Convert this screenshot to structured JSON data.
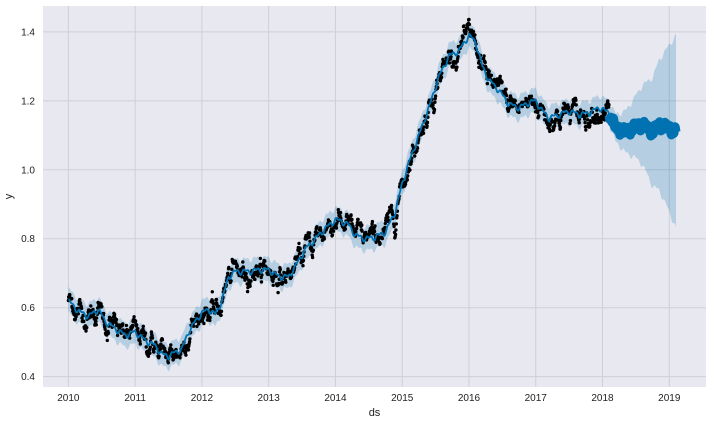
{
  "chart_data": {
    "type": "scatter",
    "title": "",
    "xlabel": "ds",
    "ylabel": "y",
    "xlim": [
      2009.62,
      2019.55
    ],
    "ylim": [
      0.37,
      1.475
    ],
    "x_ticks": [
      2010,
      2011,
      2012,
      2013,
      2014,
      2015,
      2016,
      2017,
      2018,
      2019
    ],
    "x_tick_labels": [
      "2010",
      "2011",
      "2012",
      "2013",
      "2014",
      "2015",
      "2016",
      "2017",
      "2018",
      "2019"
    ],
    "y_ticks": [
      0.4,
      0.6,
      0.8,
      1.0,
      1.2,
      1.4
    ],
    "y_tick_labels": [
      "0.4",
      "0.6",
      "0.8",
      "1.0",
      "1.2",
      "1.4"
    ],
    "grid": true,
    "history_end": 2018.1,
    "forecast_end": 2019.1,
    "trend_knots": [
      [
        2010.0,
        0.62
      ],
      [
        2010.05,
        0.61
      ],
      [
        2010.15,
        0.59
      ],
      [
        2010.3,
        0.575
      ],
      [
        2010.45,
        0.595
      ],
      [
        2010.55,
        0.56
      ],
      [
        2010.7,
        0.54
      ],
      [
        2010.85,
        0.52
      ],
      [
        2011.0,
        0.53
      ],
      [
        2011.15,
        0.505
      ],
      [
        2011.3,
        0.49
      ],
      [
        2011.4,
        0.465
      ],
      [
        2011.5,
        0.46
      ],
      [
        2011.6,
        0.47
      ],
      [
        2011.7,
        0.48
      ],
      [
        2011.8,
        0.53
      ],
      [
        2011.9,
        0.56
      ],
      [
        2012.0,
        0.585
      ],
      [
        2012.1,
        0.595
      ],
      [
        2012.2,
        0.58
      ],
      [
        2012.3,
        0.62
      ],
      [
        2012.4,
        0.69
      ],
      [
        2012.5,
        0.705
      ],
      [
        2012.7,
        0.705
      ],
      [
        2012.85,
        0.71
      ],
      [
        2013.0,
        0.71
      ],
      [
        2013.15,
        0.69
      ],
      [
        2013.3,
        0.69
      ],
      [
        2013.4,
        0.72
      ],
      [
        2013.55,
        0.77
      ],
      [
        2013.7,
        0.8
      ],
      [
        2013.85,
        0.83
      ],
      [
        2014.0,
        0.855
      ],
      [
        2014.1,
        0.85
      ],
      [
        2014.2,
        0.84
      ],
      [
        2014.3,
        0.81
      ],
      [
        2014.45,
        0.8
      ],
      [
        2014.6,
        0.805
      ],
      [
        2014.75,
        0.82
      ],
      [
        2014.9,
        0.88
      ],
      [
        2015.0,
        0.96
      ],
      [
        2015.1,
        1.02
      ],
      [
        2015.25,
        1.1
      ],
      [
        2015.4,
        1.18
      ],
      [
        2015.55,
        1.27
      ],
      [
        2015.7,
        1.33
      ],
      [
        2015.85,
        1.345
      ],
      [
        2016.0,
        1.39
      ],
      [
        2016.1,
        1.37
      ],
      [
        2016.2,
        1.3
      ],
      [
        2016.3,
        1.26
      ],
      [
        2016.45,
        1.23
      ],
      [
        2016.6,
        1.19
      ],
      [
        2016.75,
        1.18
      ],
      [
        2016.9,
        1.195
      ],
      [
        2017.0,
        1.2
      ],
      [
        2017.1,
        1.17
      ],
      [
        2017.2,
        1.15
      ],
      [
        2017.35,
        1.16
      ],
      [
        2017.5,
        1.17
      ],
      [
        2017.65,
        1.16
      ],
      [
        2017.8,
        1.165
      ],
      [
        2017.95,
        1.18
      ],
      [
        2018.1,
        1.165
      ],
      [
        2018.2,
        1.12
      ],
      [
        2018.35,
        1.11
      ],
      [
        2018.5,
        1.125
      ],
      [
        2018.6,
        1.13
      ],
      [
        2018.75,
        1.11
      ],
      [
        2018.85,
        1.13
      ],
      [
        2019.0,
        1.12
      ],
      [
        2019.1,
        1.11
      ]
    ],
    "interval_halfwidth_history": 0.035,
    "interval_halfwidth_final": 0.28,
    "scatter_noise_sd": 0.018,
    "observation_step_years": 0.0055,
    "colors": {
      "plot_background": "#e8e8f0",
      "grid": "#cfcfd6",
      "forecast_line": "#0072b2",
      "uncertainty_band": "#0072b2",
      "points": "#000000",
      "axes_text": "#222222"
    }
  }
}
